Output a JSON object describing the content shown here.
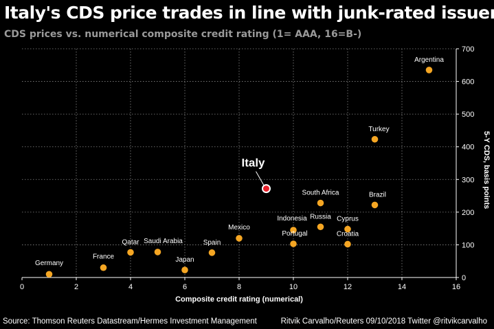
{
  "header": {
    "title": "Italy's CDS price trades in line with junk-rated issuers",
    "subtitle": "CDS prices vs. numerical composite credit rating (1= AAA, 16=B-)"
  },
  "footer": {
    "source": "Source: Thomson Reuters Datastream/Hermes Investment Management",
    "credit": "Ritvik Carvalho/Reuters 09/10/2018 Twitter @ritvikcarvalho"
  },
  "chart_data": {
    "type": "scatter",
    "title": "Italy's CDS price trades in line with junk-rated issuers",
    "subtitle": "CDS prices vs. numerical composite credit rating (1= AAA, 16=B-)",
    "xlabel": "Composite credit rating (numerical)",
    "ylabel": "5-Y CDS, basis points",
    "xlim": [
      0,
      16
    ],
    "ylim": [
      0,
      700
    ],
    "xticks": [
      0,
      2,
      4,
      6,
      8,
      10,
      12,
      14,
      16
    ],
    "yticks": [
      0,
      100,
      200,
      300,
      400,
      500,
      600,
      700
    ],
    "y_axis_side": "right",
    "grid": true,
    "point_color": "#f5a623",
    "highlight_color": "#e8212b",
    "points": [
      {
        "label": "Germany",
        "x": 1,
        "y": 10
      },
      {
        "label": "France",
        "x": 3,
        "y": 30
      },
      {
        "label": "Qatar",
        "x": 4,
        "y": 77
      },
      {
        "label": "Saudi Arabia",
        "x": 5,
        "y": 78
      },
      {
        "label": "Japan",
        "x": 6,
        "y": 23
      },
      {
        "label": "Spain",
        "x": 7,
        "y": 76
      },
      {
        "label": "Mexico",
        "x": 8,
        "y": 120
      },
      {
        "label": "Italy",
        "x": 9,
        "y": 272,
        "highlight": true
      },
      {
        "label": "Indonesia",
        "x": 10,
        "y": 145
      },
      {
        "label": "Portugal",
        "x": 10,
        "y": 103
      },
      {
        "label": "South Africa",
        "x": 11,
        "y": 228
      },
      {
        "label": "Russia",
        "x": 11,
        "y": 155
      },
      {
        "label": "Cyprus",
        "x": 12,
        "y": 148
      },
      {
        "label": "Croatia",
        "x": 12,
        "y": 102
      },
      {
        "label": "Brazil",
        "x": 13,
        "y": 222
      },
      {
        "label": "Turkey",
        "x": 13,
        "y": 423
      },
      {
        "label": "Argentina",
        "x": 15,
        "y": 635
      }
    ]
  }
}
